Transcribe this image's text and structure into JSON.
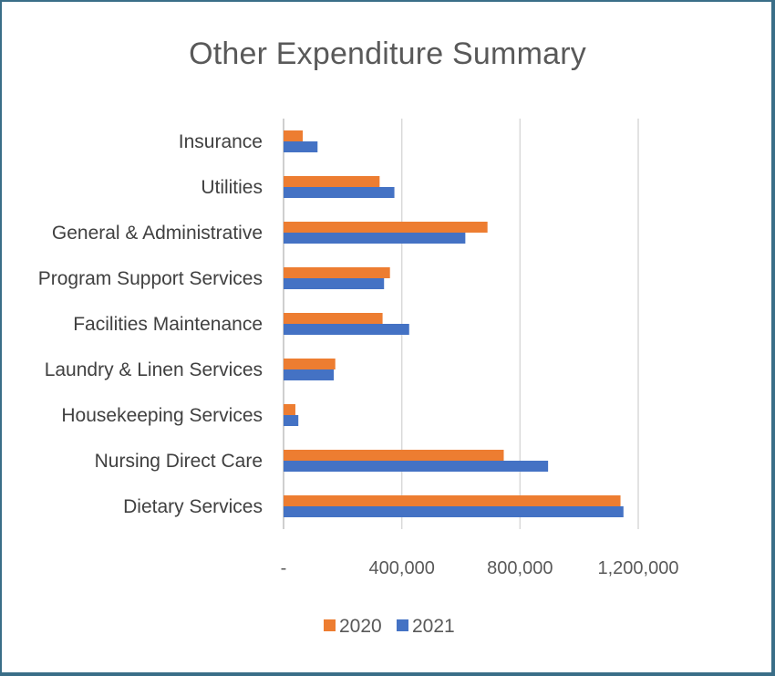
{
  "chart_data": {
    "type": "bar",
    "orientation": "horizontal",
    "title": "Other Expenditure Summary",
    "categories": [
      "Insurance",
      "Utilities",
      "General & Administrative",
      "Program Support Services",
      "Facilities Maintenance",
      "Laundry & Linen Services",
      "Housekeeping Services",
      "Nursing Direct Care",
      "Dietary Services"
    ],
    "series": [
      {
        "name": "2020",
        "color": "#ED7D31",
        "values": [
          65000,
          325000,
          690000,
          360000,
          335000,
          175000,
          40000,
          745000,
          1140000
        ]
      },
      {
        "name": "2021",
        "color": "#4472C4",
        "values": [
          115000,
          375000,
          615000,
          340000,
          425000,
          170000,
          50000,
          895000,
          1150000
        ]
      }
    ],
    "xlim": [
      0,
      1200000
    ],
    "x_ticks": [
      0,
      400000,
      800000,
      1200000
    ],
    "x_tick_labels": [
      "-",
      "400,000",
      "800,000",
      "1,200,000"
    ],
    "xlabel": "",
    "ylabel": "",
    "grid": "vertical",
    "legend": "bottom"
  }
}
